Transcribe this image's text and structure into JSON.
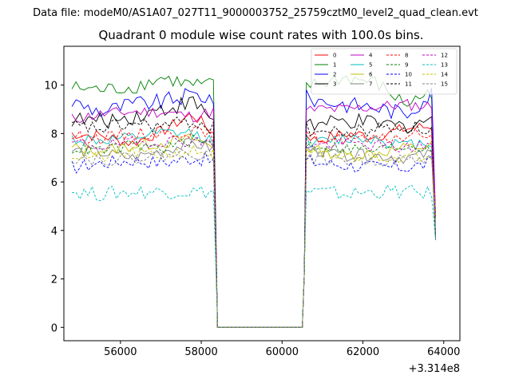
{
  "chart_data": {
    "type": "line",
    "subtitle": "Data file: modeM0/AS1A07_027T11_9000003752_25759cztM0_level2_quad_clean.evt",
    "title": "Quadrant 0 module wise count rates with 100.0s bins.",
    "xlabel": "",
    "ylabel": "",
    "x_offset_label": "+3.314e8",
    "x_offset": 331400000,
    "xlim": [
      54600,
      64400
    ],
    "ylim": [
      -0.55,
      11.6
    ],
    "xticks": [
      56000,
      58000,
      60000,
      62000,
      64000
    ],
    "xtick_labels": [
      "56000",
      "58000",
      "60000",
      "62000",
      "64000"
    ],
    "yticks": [
      0,
      2,
      4,
      6,
      8,
      10
    ],
    "ytick_labels": [
      "0",
      "2",
      "4",
      "6",
      "8",
      "10"
    ],
    "grid": false,
    "legend_position": "top-right",
    "bin_size_s": 100,
    "segments": [
      {
        "start": 54800,
        "end": 58300
      },
      {
        "start": 60600,
        "end": 63800
      }
    ],
    "gap": {
      "start": 58400,
      "end": 60500,
      "value": 0
    },
    "edge_values": {
      "pre_gap": 0.3,
      "post_gap": 0.2,
      "final": [
        4.5,
        3.6
      ]
    },
    "series": [
      {
        "name": "0",
        "color": "#ff0000",
        "dash": "solid",
        "level": 7.85,
        "noise": 0.25,
        "trend": [
          8.0,
          7.9,
          7.6,
          8.1,
          8.8,
          7.7,
          8.0,
          7.9,
          8.2,
          8.3
        ]
      },
      {
        "name": "1",
        "color": "#008000",
        "dash": "solid",
        "level": 9.9,
        "noise": 0.3,
        "trend": [
          9.9,
          9.8,
          9.9,
          10.3,
          10.0,
          10.0,
          10.3,
          10.1,
          9.2,
          9.8
        ]
      },
      {
        "name": "2",
        "color": "#0000ff",
        "dash": "solid",
        "level": 9.3,
        "noise": 0.35,
        "trend": [
          9.3,
          8.9,
          9.2,
          9.3,
          9.6,
          9.4,
          9.2,
          9.1,
          8.8,
          9.8
        ]
      },
      {
        "name": "3",
        "color": "#000000",
        "dash": "solid",
        "level": 8.6,
        "noise": 0.35,
        "trend": [
          8.6,
          8.5,
          8.7,
          9.0,
          9.3,
          8.3,
          8.5,
          8.4,
          8.3,
          8.7
        ]
      },
      {
        "name": "4",
        "color": "#c000c0",
        "dash": "solid",
        "level": 8.9,
        "noise": 0.25,
        "trend": [
          8.6,
          8.8,
          8.9,
          8.9,
          8.7,
          9.0,
          9.0,
          9.1,
          9.2,
          9.1
        ]
      },
      {
        "name": "5",
        "color": "#00bfbf",
        "dash": "solid",
        "level": 7.8,
        "noise": 0.25,
        "trend": [
          7.8,
          7.7,
          7.8,
          8.0,
          8.0,
          7.6,
          7.8,
          7.8,
          7.5,
          7.7
        ]
      },
      {
        "name": "6",
        "color": "#bfbf00",
        "dash": "solid",
        "level": 7.4,
        "noise": 0.25,
        "trend": [
          7.4,
          7.3,
          7.5,
          7.6,
          7.8,
          7.3,
          7.1,
          7.2,
          7.4,
          7.5
        ]
      },
      {
        "name": "7",
        "color": "#808080",
        "dash": "solid",
        "level": 7.2,
        "noise": 0.25,
        "trend": [
          7.3,
          7.2,
          7.0,
          7.3,
          7.6,
          7.3,
          7.1,
          7.1,
          7.0,
          7.2
        ]
      },
      {
        "name": "8",
        "color": "#ff0000",
        "dash": "dashed",
        "level": 7.9,
        "noise": 0.25,
        "trend": [
          7.9,
          7.8,
          8.0,
          8.0,
          8.1,
          7.8,
          7.8,
          7.7,
          7.9,
          8.0
        ]
      },
      {
        "name": "9",
        "color": "#008000",
        "dash": "dashed",
        "level": 7.4,
        "noise": 0.25,
        "trend": [
          7.4,
          7.3,
          7.5,
          7.4,
          7.7,
          7.5,
          7.4,
          7.3,
          7.5,
          7.4
        ]
      },
      {
        "name": "10",
        "color": "#0000ff",
        "dash": "dashed",
        "level": 6.8,
        "noise": 0.3,
        "trend": [
          6.6,
          6.8,
          6.9,
          6.8,
          7.0,
          6.8,
          6.7,
          6.6,
          6.6,
          6.8
        ]
      },
      {
        "name": "11",
        "color": "#000000",
        "dash": "dashed",
        "level": 8.3,
        "noise": 0.3,
        "trend": [
          8.3,
          8.2,
          8.4,
          8.3,
          8.5,
          8.1,
          8.0,
          8.2,
          8.3,
          8.1
        ]
      },
      {
        "name": "12",
        "color": "#c000c0",
        "dash": "dashed",
        "level": 7.6,
        "noise": 0.25,
        "trend": [
          7.6,
          7.5,
          7.6,
          7.7,
          7.7,
          7.5,
          7.6,
          7.5,
          7.4,
          7.6
        ]
      },
      {
        "name": "13",
        "color": "#00bfbf",
        "dash": "dashed",
        "level": 5.6,
        "noise": 0.3,
        "trend": [
          5.6,
          5.5,
          5.6,
          5.6,
          5.6,
          5.6,
          5.5,
          5.6,
          5.6,
          5.5
        ]
      },
      {
        "name": "14",
        "color": "#bfbf00",
        "dash": "dashed",
        "level": 7.1,
        "noise": 0.25,
        "trend": [
          7.1,
          7.0,
          7.2,
          7.1,
          7.3,
          7.1,
          7.0,
          7.1,
          7.0,
          7.2
        ]
      },
      {
        "name": "15",
        "color": "#808080",
        "dash": "dashed",
        "level": 7.0,
        "noise": 0.25,
        "trend": [
          7.0,
          6.9,
          7.0,
          7.1,
          7.2,
          7.0,
          6.9,
          6.9,
          6.9,
          7.0
        ]
      }
    ]
  }
}
